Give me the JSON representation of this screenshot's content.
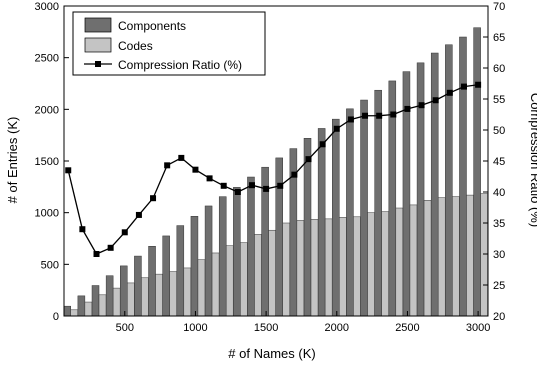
{
  "chart_data": {
    "type": "bar",
    "title": "",
    "xlabel": "# of Names (K)",
    "ylabel_left": "# of Entries (K)",
    "ylabel_right": "Compression Ratio (%)",
    "xlim": [
      70,
      3070
    ],
    "ylim_left": [
      0,
      3000
    ],
    "ylim_right": [
      20,
      70
    ],
    "xticks": [
      500,
      1000,
      1500,
      2000,
      2500,
      3000
    ],
    "xtick_labels": [
      "500",
      "1000",
      "1500",
      "2000",
      "2500",
      "3000"
    ],
    "yticks_left": [
      0,
      500,
      1000,
      1500,
      2000,
      2500,
      3000
    ],
    "ytick_labels_left": [
      "0",
      "500",
      "1000",
      "1500",
      "2000",
      "2500",
      "3000"
    ],
    "yticks_right": [
      20,
      25,
      30,
      35,
      40,
      45,
      50,
      55,
      60,
      65,
      70
    ],
    "ytick_labels_right": [
      "20",
      "25",
      "30",
      "35",
      "40",
      "45",
      "50",
      "55",
      "60",
      "65",
      "70"
    ],
    "grid": false,
    "legend_position": "top-left",
    "x": [
      100,
      200,
      300,
      400,
      500,
      600,
      700,
      800,
      900,
      1000,
      1100,
      1200,
      1300,
      1400,
      1500,
      1600,
      1700,
      1800,
      1900,
      2000,
      2100,
      2200,
      2300,
      2400,
      2500,
      2600,
      2700,
      2800,
      2900,
      3000
    ],
    "series": [
      {
        "name": "Components",
        "type": "bar",
        "axis": "left",
        "color": "#6f6f6f",
        "values": [
          95,
          195,
          295,
          390,
          485,
          580,
          675,
          775,
          875,
          965,
          1065,
          1155,
          1245,
          1345,
          1440,
          1530,
          1620,
          1720,
          1815,
          1905,
          2005,
          2090,
          2185,
          2275,
          2365,
          2450,
          2545,
          2625,
          2700,
          2790
        ]
      },
      {
        "name": "Codes",
        "type": "bar",
        "axis": "left",
        "color": "#c4c4c4",
        "values": [
          60,
          135,
          205,
          270,
          320,
          370,
          405,
          430,
          465,
          545,
          610,
          680,
          710,
          790,
          830,
          900,
          925,
          935,
          940,
          955,
          960,
          1000,
          1010,
          1045,
          1075,
          1120,
          1145,
          1155,
          1170,
          1185
        ]
      },
      {
        "name": "Compression Ratio (%)",
        "type": "line",
        "axis": "right",
        "color": "#000000",
        "marker": "square",
        "values": [
          43.5,
          34.0,
          30.0,
          31.0,
          33.5,
          36.3,
          39.0,
          44.3,
          45.5,
          43.6,
          42.2,
          41.0,
          40.0,
          41.1,
          40.5,
          41.0,
          42.8,
          45.3,
          47.7,
          50.2,
          51.7,
          52.3,
          52.3,
          52.5,
          53.4,
          54.0,
          54.8,
          56.0,
          57.0,
          57.3
        ]
      }
    ]
  }
}
